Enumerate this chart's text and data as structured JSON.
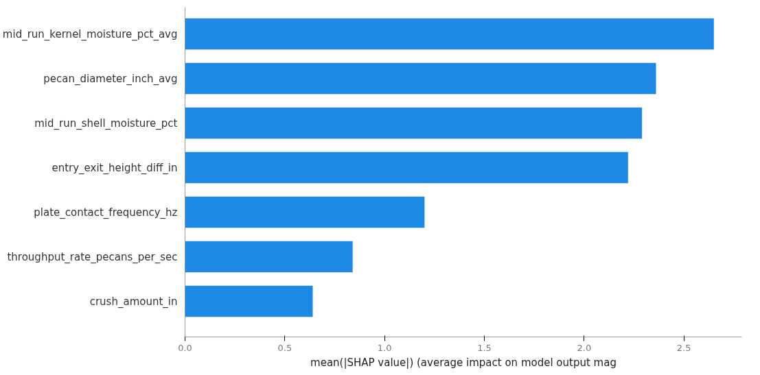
{
  "chart_data": {
    "type": "bar",
    "orientation": "horizontal",
    "xlabel": "mean(|SHAP value|) (average impact on model output mag",
    "categories": [
      "mid_run_kernel_moisture_pct_avg",
      "pecan_diameter_inch_avg",
      "mid_run_shell_moisture_pct",
      "entry_exit_height_diff_in",
      "plate_contact_frequency_hz",
      "throughput_rate_pecans_per_sec",
      "crush_amount_in"
    ],
    "values": [
      2.65,
      2.36,
      2.29,
      2.22,
      1.2,
      0.84,
      0.64
    ],
    "color": "#1e88e5",
    "xlim": [
      0,
      2.79
    ],
    "xticks": [
      {
        "value": 0,
        "label": "0.0"
      },
      {
        "value": 0.5,
        "label": "0.5"
      },
      {
        "value": 1,
        "label": "1.0"
      },
      {
        "value": 1.5,
        "label": "1.5"
      },
      {
        "value": 2,
        "label": "2.0"
      },
      {
        "value": 2.5,
        "label": "2.5"
      }
    ],
    "grid": false
  }
}
